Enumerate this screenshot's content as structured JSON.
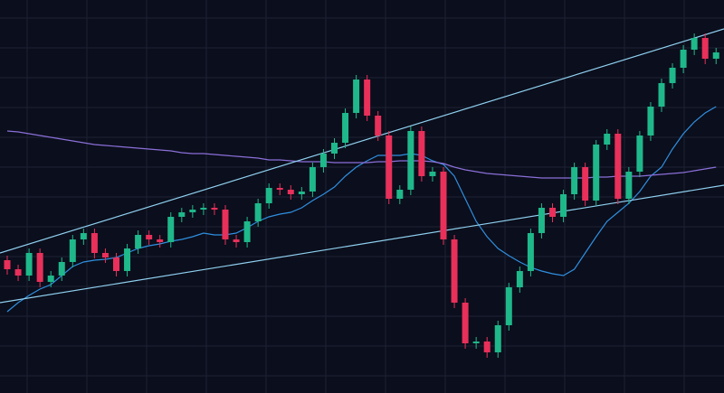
{
  "chart_data": {
    "type": "candlestick",
    "ylim": [
      0,
      435
    ],
    "grid": true,
    "up_color": "#1fb88a",
    "down_color": "#e8305a",
    "open": [
      147,
      137,
      130,
      155,
      123,
      130,
      145,
      170,
      177,
      155,
      150,
      135,
      160,
      175,
      170,
      167,
      195,
      200,
      203,
      205,
      203,
      170,
      167,
      190,
      210,
      227,
      225,
      220,
      223,
      250,
      265,
      277,
      310,
      347,
      307,
      285,
      215,
      225,
      290,
      240,
      245,
      170,
      100,
      55,
      57,
      45,
      75,
      117,
      135,
      177,
      205,
      195,
      220,
      250,
      213,
      275,
      287,
      215,
      245,
      285,
      317,
      343,
      360,
      380,
      393,
      370
    ],
    "high": [
      152,
      142,
      160,
      160,
      135,
      150,
      175,
      182,
      182,
      160,
      155,
      165,
      180,
      180,
      175,
      200,
      205,
      208,
      210,
      210,
      208,
      175,
      195,
      215,
      232,
      232,
      230,
      228,
      255,
      270,
      282,
      315,
      352,
      352,
      312,
      290,
      230,
      295,
      295,
      250,
      250,
      175,
      105,
      62,
      62,
      80,
      122,
      140,
      182,
      210,
      210,
      225,
      255,
      255,
      280,
      292,
      292,
      250,
      290,
      322,
      348,
      365,
      385,
      398,
      398,
      382
    ],
    "low": [
      131,
      124,
      124,
      117,
      117,
      124,
      139,
      164,
      149,
      144,
      129,
      129,
      154,
      164,
      161,
      161,
      189,
      194,
      197,
      197,
      164,
      161,
      161,
      184,
      204,
      219,
      214,
      214,
      217,
      244,
      259,
      271,
      304,
      301,
      279,
      209,
      209,
      219,
      234,
      234,
      164,
      94,
      49,
      49,
      39,
      39,
      69,
      111,
      129,
      171,
      189,
      189,
      214,
      207,
      207,
      269,
      209,
      209,
      239,
      279,
      311,
      337,
      354,
      374,
      364,
      364
    ],
    "close": [
      137,
      130,
      155,
      123,
      130,
      145,
      170,
      177,
      155,
      150,
      135,
      160,
      175,
      170,
      167,
      195,
      200,
      203,
      205,
      203,
      170,
      167,
      190,
      210,
      227,
      225,
      220,
      223,
      250,
      265,
      277,
      310,
      347,
      307,
      285,
      215,
      225,
      290,
      240,
      245,
      170,
      100,
      55,
      57,
      45,
      75,
      117,
      135,
      177,
      205,
      195,
      220,
      250,
      213,
      275,
      287,
      215,
      245,
      285,
      317,
      343,
      360,
      380,
      393,
      370,
      377
    ],
    "series": [
      {
        "color": "#2f8fe0",
        "values": [
          90,
          100,
          108,
          115,
          120,
          130,
          140,
          145,
          147,
          148,
          150,
          155,
          160,
          163,
          165,
          168,
          170,
          173,
          177,
          175,
          175,
          177,
          183,
          190,
          195,
          198,
          200,
          205,
          213,
          220,
          228,
          240,
          250,
          257,
          263,
          263,
          263,
          265,
          263,
          257,
          253,
          240,
          215,
          190,
          173,
          160,
          152,
          145,
          139,
          135,
          132,
          130,
          137,
          155,
          173,
          190,
          200,
          210,
          223,
          240,
          250,
          270,
          287,
          300,
          310,
          317
        ]
      },
      {
        "color": "#8a6fd8",
        "values": [
          290,
          289,
          287,
          285,
          283,
          281,
          279,
          277,
          275,
          274,
          273,
          272,
          271,
          270,
          269,
          268,
          266,
          265,
          265,
          264,
          263,
          262,
          261,
          260,
          258,
          258,
          257,
          256,
          256,
          256,
          255,
          255,
          255,
          255,
          256,
          256,
          257,
          257,
          257,
          256,
          254,
          250,
          247,
          245,
          243,
          242,
          241,
          240,
          239,
          238,
          238,
          238,
          238,
          238,
          239,
          239,
          240,
          240,
          240,
          241,
          242,
          243,
          244,
          246,
          248,
          250
        ]
      }
    ]
  }
}
